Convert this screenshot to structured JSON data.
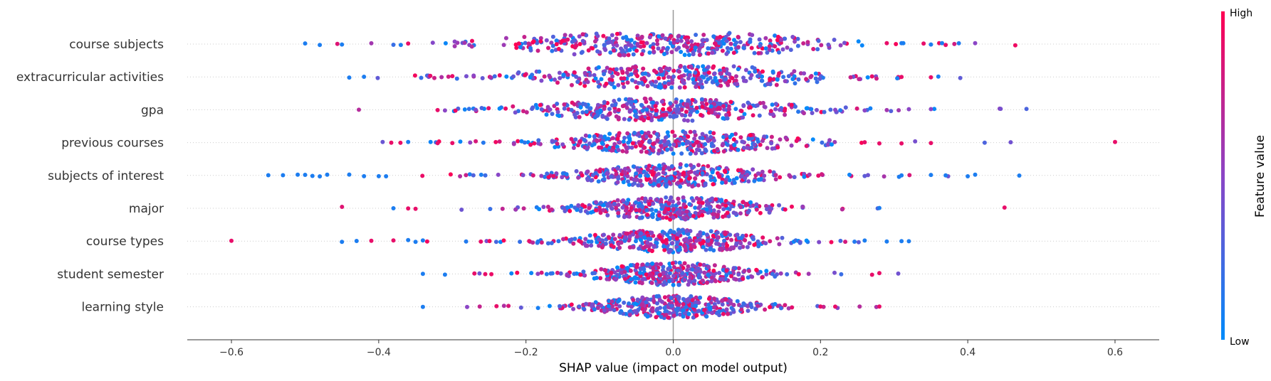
{
  "chart_data": {
    "type": "scatter",
    "subtype": "shap-beeswarm",
    "title": "",
    "xlabel": "SHAP value (impact on model output)",
    "ylabel": "",
    "xlim": [
      -0.66,
      0.66
    ],
    "xticks": [
      -0.6,
      -0.4,
      -0.2,
      0.0,
      0.2,
      0.4,
      0.6
    ],
    "xtick_labels": [
      "−0.6",
      "−0.4",
      "−0.2",
      "0.0",
      "0.2",
      "0.4",
      "0.6"
    ],
    "grid": "horizontal dotted lines per feature",
    "zero_line": true,
    "colorbar": {
      "label": "Feature value",
      "high_label": "High",
      "low_label": "Low",
      "low_color": "#008bfb",
      "high_color": "#ff0052",
      "mid_color": "#8b45c6"
    },
    "features": [
      {
        "name": "course subjects",
        "spread": 0.09,
        "peaks": [
          -0.09,
          0.05
        ],
        "outliers": [
          {
            "x": -0.5,
            "v": 0.1
          },
          {
            "x": -0.48,
            "v": 0.1
          },
          {
            "x": -0.45,
            "v": 0.1
          },
          {
            "x": -0.41,
            "v": 0.6
          },
          {
            "x": -0.38,
            "v": 0.2
          },
          {
            "x": -0.37,
            "v": 0.1
          },
          {
            "x": -0.36,
            "v": 0.9
          },
          {
            "x": 0.29,
            "v": 0.9
          },
          {
            "x": 0.31,
            "v": 0.1
          },
          {
            "x": 0.34,
            "v": 0.9
          },
          {
            "x": 0.35,
            "v": 0.1
          },
          {
            "x": 0.37,
            "v": 0.9
          },
          {
            "x": 0.41,
            "v": 0.5
          }
        ]
      },
      {
        "name": "extracurricular activities",
        "spread": 0.1,
        "peaks": [
          -0.03,
          0.03
        ],
        "outliers": [
          {
            "x": -0.44,
            "v": 0.1
          },
          {
            "x": -0.42,
            "v": 0.1
          },
          {
            "x": -0.33,
            "v": 0.9
          },
          {
            "x": -0.3,
            "v": 0.9
          },
          {
            "x": 0.27,
            "v": 0.9
          },
          {
            "x": 0.31,
            "v": 0.9
          },
          {
            "x": 0.35,
            "v": 0.9
          }
        ]
      },
      {
        "name": "gpa",
        "spread": 0.1,
        "peaks": [
          -0.01
        ],
        "outliers": [
          {
            "x": -0.32,
            "v": 0.9
          },
          {
            "x": -0.31,
            "v": 0.5
          },
          {
            "x": 0.22,
            "v": 0.5
          },
          {
            "x": 0.26,
            "v": 0.5
          },
          {
            "x": 0.29,
            "v": 0.6
          },
          {
            "x": 0.32,
            "v": 0.5
          },
          {
            "x": 0.35,
            "v": 0.5
          }
        ]
      },
      {
        "name": "previous courses",
        "spread": 0.09,
        "peaks": [
          0.0
        ],
        "outliers": [
          {
            "x": -0.36,
            "v": 0.1
          },
          {
            "x": -0.32,
            "v": 0.9
          },
          {
            "x": -0.3,
            "v": 0.9
          },
          {
            "x": 0.26,
            "v": 0.9
          },
          {
            "x": 0.28,
            "v": 0.9
          },
          {
            "x": 0.31,
            "v": 0.9
          },
          {
            "x": 0.35,
            "v": 0.9
          },
          {
            "x": 0.6,
            "v": 0.9
          }
        ]
      },
      {
        "name": "subjects of interest",
        "spread": 0.07,
        "peaks": [
          0.0
        ],
        "outliers": [
          {
            "x": -0.55,
            "v": 0.1
          },
          {
            "x": -0.53,
            "v": 0.1
          },
          {
            "x": -0.51,
            "v": 0.1
          },
          {
            "x": -0.5,
            "v": 0.1
          },
          {
            "x": -0.49,
            "v": 0.1
          },
          {
            "x": -0.48,
            "v": 0.1
          },
          {
            "x": -0.47,
            "v": 0.1
          },
          {
            "x": -0.44,
            "v": 0.1
          },
          {
            "x": -0.42,
            "v": 0.1
          },
          {
            "x": -0.4,
            "v": 0.1
          },
          {
            "x": -0.39,
            "v": 0.1
          },
          {
            "x": 0.31,
            "v": 0.1
          },
          {
            "x": 0.35,
            "v": 0.1
          },
          {
            "x": 0.37,
            "v": 0.1
          },
          {
            "x": 0.4,
            "v": 0.1
          },
          {
            "x": 0.41,
            "v": 0.1
          },
          {
            "x": 0.47,
            "v": 0.1
          }
        ]
      },
      {
        "name": "major",
        "spread": 0.07,
        "peaks": [
          0.0
        ],
        "outliers": [
          {
            "x": -0.38,
            "v": 0.1
          },
          {
            "x": -0.36,
            "v": 0.9
          },
          {
            "x": -0.35,
            "v": 0.9
          },
          {
            "x": 0.28,
            "v": 0.1
          },
          {
            "x": 0.45,
            "v": 0.9
          }
        ]
      },
      {
        "name": "course types",
        "spread": 0.07,
        "peaks": [
          0.0
        ],
        "outliers": [
          {
            "x": -0.6,
            "v": 0.9
          },
          {
            "x": -0.45,
            "v": 0.1
          },
          {
            "x": -0.43,
            "v": 0.1
          },
          {
            "x": -0.41,
            "v": 0.9
          },
          {
            "x": -0.38,
            "v": 0.9
          },
          {
            "x": -0.36,
            "v": 0.1
          },
          {
            "x": -0.35,
            "v": 0.1
          },
          {
            "x": -0.34,
            "v": 0.1
          },
          {
            "x": 0.26,
            "v": 0.1
          },
          {
            "x": 0.29,
            "v": 0.1
          },
          {
            "x": 0.31,
            "v": 0.1
          },
          {
            "x": 0.32,
            "v": 0.1
          }
        ]
      },
      {
        "name": "student semester",
        "spread": 0.06,
        "peaks": [
          0.0
        ],
        "outliers": [
          {
            "x": -0.34,
            "v": 0.1
          },
          {
            "x": -0.31,
            "v": 0.1
          },
          {
            "x": -0.27,
            "v": 0.9
          },
          {
            "x": 0.27,
            "v": 0.9
          },
          {
            "x": 0.28,
            "v": 0.9
          }
        ]
      },
      {
        "name": "learning style",
        "spread": 0.06,
        "peaks": [
          0.0
        ],
        "outliers": [
          {
            "x": -0.34,
            "v": 0.1
          },
          {
            "x": -0.28,
            "v": 0.5
          },
          {
            "x": -0.24,
            "v": 0.9
          },
          {
            "x": 0.2,
            "v": 0.9
          },
          {
            "x": 0.22,
            "v": 0.9
          },
          {
            "x": 0.28,
            "v": 0.9
          }
        ]
      }
    ]
  }
}
